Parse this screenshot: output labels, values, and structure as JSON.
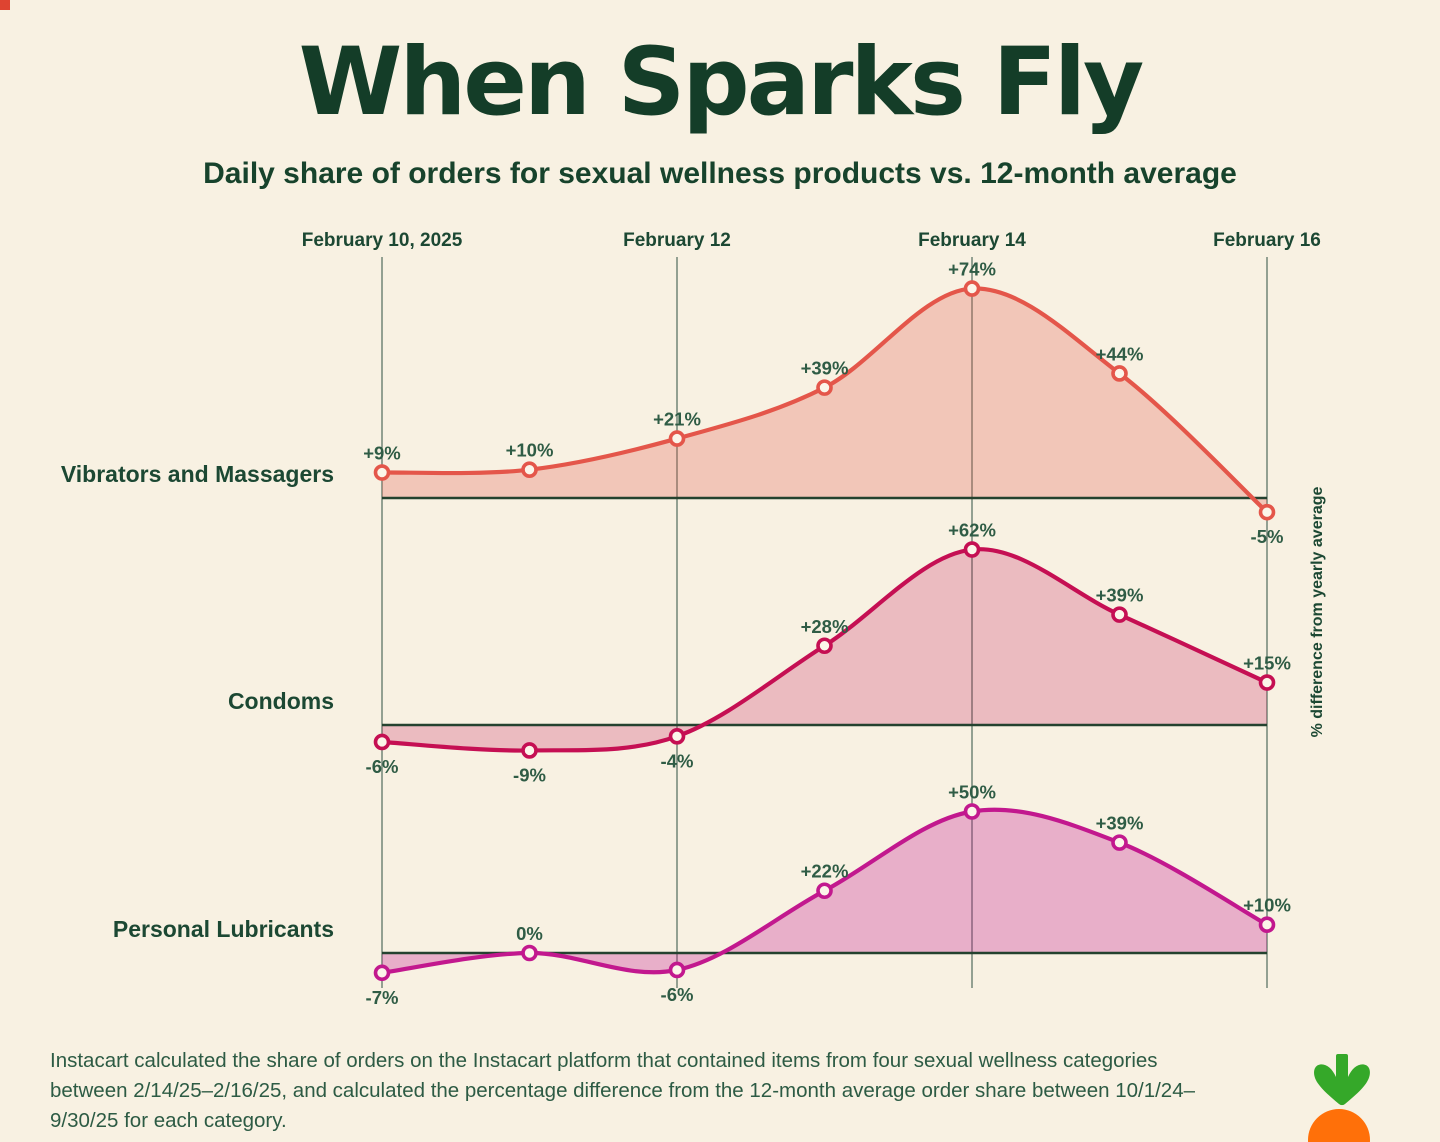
{
  "page": {
    "background_color": "#f8f1e2",
    "corner_mark_color": "#de4431"
  },
  "header": {
    "title": "When Sparks Fly",
    "subtitle": "Daily share of orders for sexual wellness products vs. 12-month average"
  },
  "chart_data": {
    "type": "area",
    "title": "When Sparks Fly",
    "subtitle": "Daily share of orders for sexual wellness products vs. 12-month average",
    "x_unit": "day",
    "n_points": 7,
    "x_ticks": [
      {
        "label": "February 10, 2025",
        "index": 0,
        "bold": false
      },
      {
        "label": "February 12",
        "index": 2,
        "bold": false
      },
      {
        "label": "February 14",
        "index": 4,
        "bold": true
      },
      {
        "label": "February 16",
        "index": 6,
        "bold": false
      }
    ],
    "series": [
      {
        "name": "Vibrators and Massagers",
        "color": "#e4564a",
        "fill_opacity": 0.28,
        "values": [
          9,
          10,
          21,
          39,
          74,
          44,
          -5
        ]
      },
      {
        "name": "Condoms",
        "color": "#c50f53",
        "fill_opacity": 0.24,
        "values": [
          -6,
          -9,
          -4,
          28,
          62,
          39,
          15
        ]
      },
      {
        "name": "Personal Lubricants",
        "color": "#c2188e",
        "fill_opacity": 0.3,
        "values": [
          -7,
          0,
          -6,
          22,
          50,
          39,
          10
        ]
      }
    ],
    "point_labels": [
      [
        "+9%",
        "+10%",
        "+21%",
        "+39%",
        "+74%",
        "+44%",
        "-5%"
      ],
      [
        "-6%",
        "-9%",
        "-4%",
        "+28%",
        "+62%",
        "+39%",
        "+15%"
      ],
      [
        "-7%",
        "0%",
        "-6%",
        "+22%",
        "+50%",
        "+39%",
        "+10%"
      ]
    ],
    "ylabel": "% difference from yearly average",
    "baseline_value": 0,
    "grid": "vertical-only",
    "legend_position": "left-of-each-ridge",
    "colors": {
      "gridline": "#5d7566",
      "baseline": "#24422f",
      "value_label": "#2f5c45",
      "axis_label": "#1c4833",
      "marker_fill": "#fbf5e9"
    }
  },
  "footer": {
    "note": "Instacart calculated the share of orders on the Instacart platform that contained items from four sexual wellness categories between 2/14/25–2/16/25, and calculated the percentage difference from the 12-month average order share between 10/1/24–9/30/25 for each category."
  },
  "logo": {
    "name": "instacart-carrot",
    "carrot_color": "#ff7009",
    "leaf_color": "#35a829"
  }
}
